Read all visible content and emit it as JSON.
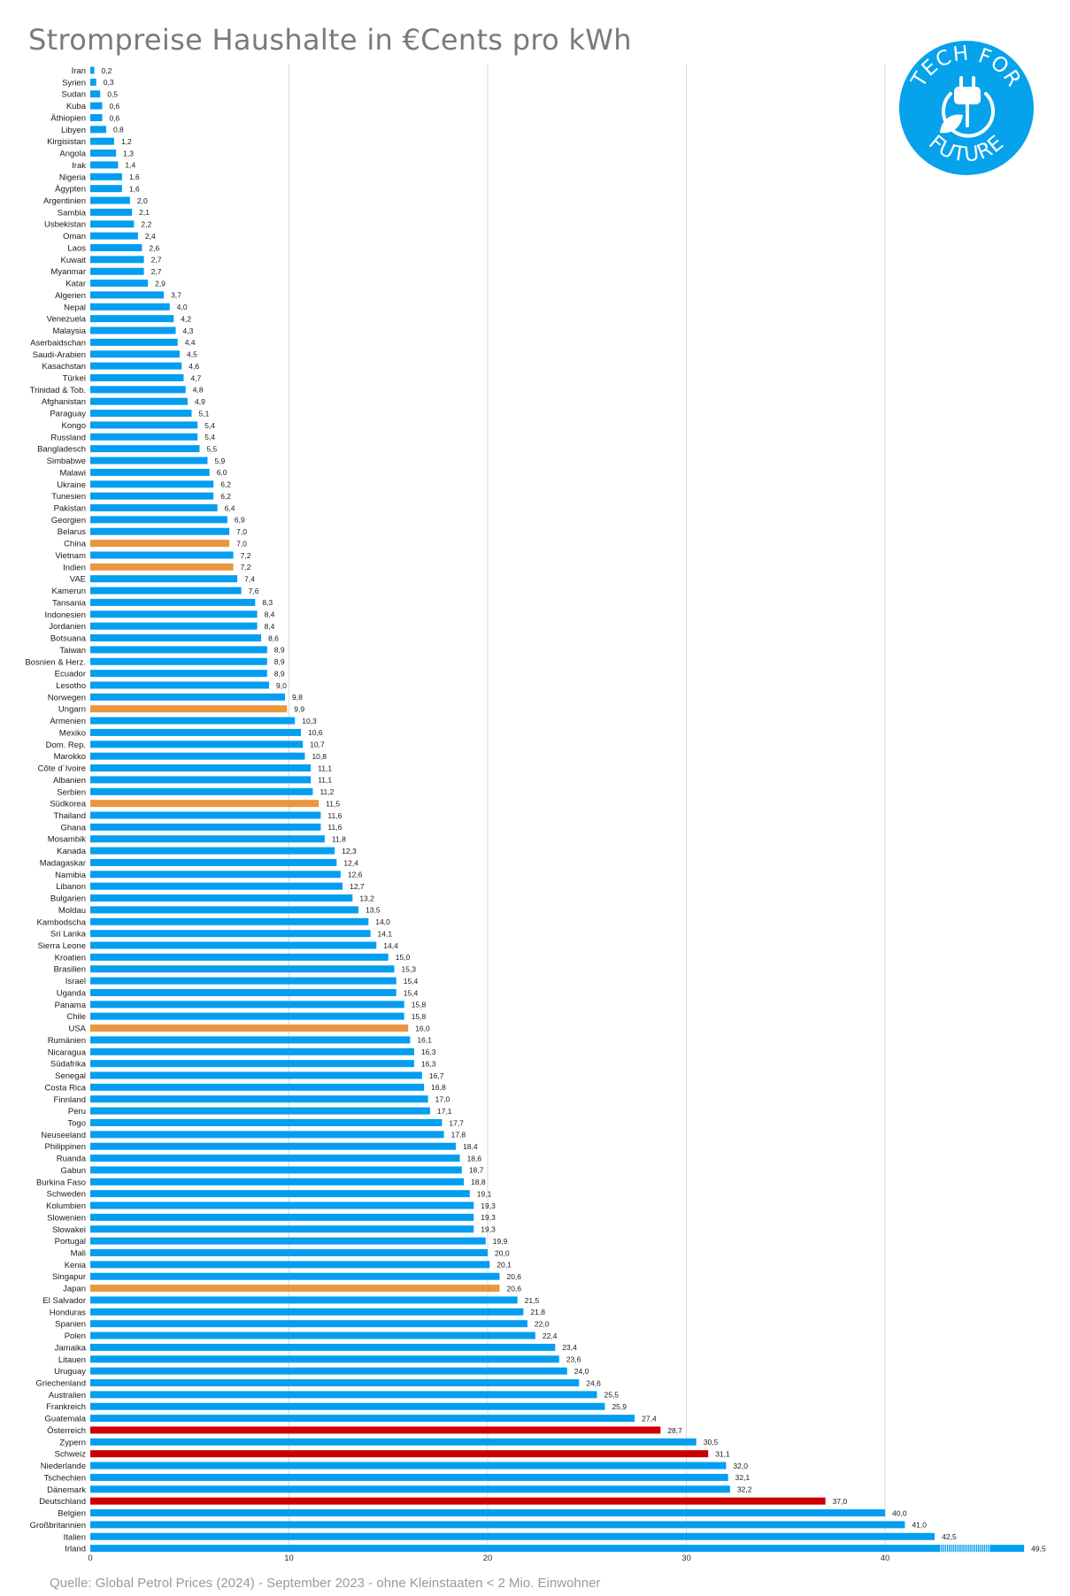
{
  "title": "Strompreise Haushalte in €Cents pro kWh",
  "source": "Quelle: Global Petrol Prices (2024) - September 2023 - ohne Kleinstaaten < 2 Mio. Einwohner",
  "logo": {
    "text_top": "TECH FOR",
    "text_bottom": "FUTURE",
    "icon": "plug-leaf-icon",
    "color": "#07a2ec"
  },
  "colors": {
    "default": "#049ef0",
    "highlight_orange": "#e8963f",
    "highlight_red": "#cc0000",
    "grid": "#d9d9d9"
  },
  "chart_data": {
    "type": "bar",
    "orientation": "horizontal",
    "title": "Strompreise Haushalte in €Cents pro kWh",
    "xlim": [
      0,
      47
    ],
    "xticks": [
      0,
      10,
      20,
      30,
      40
    ],
    "grid": true,
    "categories": [
      "Iran",
      "Syrien",
      "Sudan",
      "Kuba",
      "Äthiopien",
      "Libyen",
      "Kirgisistan",
      "Angola",
      "Irak",
      "Nigeria",
      "Ägypten",
      "Argentinien",
      "Sambia",
      "Usbekistan",
      "Oman",
      "Laos",
      "Kuwait",
      "Myanmar",
      "Katar",
      "Algerien",
      "Nepal",
      "Venezuela",
      "Malaysia",
      "Aserbaidschan",
      "Saudi-Arabien",
      "Kasachstan",
      "Türkei",
      "Trinidad & Tob.",
      "Afghanistan",
      "Paraguay",
      "Kongo",
      "Russland",
      "Bangladesch",
      "Simbabwe",
      "Malawi",
      "Ukraine",
      "Tunesien",
      "Pakistan",
      "Georgien",
      "Belarus",
      "China",
      "Vietnam",
      "Indien",
      "VAE",
      "Kamerun",
      "Tansania",
      "Indonesien",
      "Jordanien",
      "Botsuana",
      "Taiwan",
      "Bosnien & Herz.",
      "Ecuador",
      "Lesotho",
      "Norwegen",
      "Ungarn",
      "Armenien",
      "Mexiko",
      "Dom. Rep.",
      "Marokko",
      "Côte d´Ivoire",
      "Albanien",
      "Serbien",
      "Südkorea",
      "Thailand",
      "Ghana",
      "Mosambik",
      "Kanada",
      "Madagaskar",
      "Namibia",
      "Libanon",
      "Bulgarien",
      "Moldau",
      "Kambodscha",
      "Sri Lanka",
      "Sierra Leone",
      "Kroatien",
      "Brasilien",
      "Israel",
      "Uganda",
      "Panama",
      "Chile",
      "USA",
      "Rumänien",
      "Nicaragua",
      "Südafrika",
      "Senegal",
      "Costa Rica",
      "Finnland",
      "Peru",
      "Togo",
      "Neuseeland",
      "Philippinen",
      "Ruanda",
      "Gabun",
      "Burkina Faso",
      "Schweden",
      "Kolumbien",
      "Slowenien",
      "Slowakei",
      "Portugal",
      "Mali",
      "Kenia",
      "Singapur",
      "Japan",
      "El Salvador",
      "Honduras",
      "Spanien",
      "Polen",
      "Jamaika",
      "Litauen",
      "Uruguay",
      "Griechenland",
      "Australien",
      "Frankreich",
      "Guatemala",
      "Österreich",
      "Zypern",
      "Schweiz",
      "Niederlande",
      "Tschechien",
      "Dänemark",
      "Deutschland",
      "Belgien",
      "Großbritannien",
      "Italien",
      "Irland"
    ],
    "values": [
      0.2,
      0.3,
      0.5,
      0.6,
      0.6,
      0.8,
      1.2,
      1.3,
      1.4,
      1.6,
      1.6,
      2.0,
      2.1,
      2.2,
      2.4,
      2.6,
      2.7,
      2.7,
      2.9,
      3.7,
      4.0,
      4.2,
      4.3,
      4.4,
      4.5,
      4.6,
      4.7,
      4.8,
      4.9,
      5.1,
      5.4,
      5.4,
      5.5,
      5.9,
      6.0,
      6.2,
      6.2,
      6.4,
      6.9,
      7.0,
      7.0,
      7.2,
      7.2,
      7.4,
      7.6,
      8.3,
      8.4,
      8.4,
      8.6,
      8.9,
      8.9,
      8.9,
      9.0,
      9.8,
      9.9,
      10.3,
      10.6,
      10.7,
      10.8,
      11.1,
      11.1,
      11.2,
      11.5,
      11.6,
      11.6,
      11.8,
      12.3,
      12.4,
      12.6,
      12.7,
      13.2,
      13.5,
      14.0,
      14.1,
      14.4,
      15.0,
      15.3,
      15.4,
      15.4,
      15.8,
      15.8,
      16.0,
      16.1,
      16.3,
      16.3,
      16.7,
      16.8,
      17.0,
      17.1,
      17.7,
      17.8,
      18.4,
      18.6,
      18.7,
      18.8,
      19.1,
      19.3,
      19.3,
      19.3,
      19.9,
      20.0,
      20.1,
      20.6,
      20.6,
      21.5,
      21.8,
      22.0,
      22.4,
      23.4,
      23.6,
      24.0,
      24.6,
      25.5,
      25.9,
      27.4,
      28.7,
      30.5,
      31.1,
      32.0,
      32.1,
      32.2,
      37.0,
      40.0,
      41.0,
      42.5,
      49.5
    ],
    "value_labels": [
      "0,2",
      "0,3",
      "0,5",
      "0,6",
      "0,6",
      "0,8",
      "1,2",
      "1,3",
      "1,4",
      "1,6",
      "1,6",
      "2,0",
      "2,1",
      "2,2",
      "2,4",
      "2,6",
      "2,7",
      "2,7",
      "2,9",
      "3,7",
      "4,0",
      "4,2",
      "4,3",
      "4,4",
      "4,5",
      "4,6",
      "4,7",
      "4,8",
      "4,9",
      "5,1",
      "5,4",
      "5,4",
      "5,5",
      "5,9",
      "6,0",
      "6,2",
      "6,2",
      "6,4",
      "6,9",
      "7,0",
      "7,0",
      "7,2",
      "7,2",
      "7,4",
      "7,6",
      "8,3",
      "8,4",
      "8,4",
      "8,6",
      "8,9",
      "8,9",
      "8,9",
      "9,0",
      "9,8",
      "9,9",
      "10,3",
      "10,6",
      "10,7",
      "10,8",
      "11,1",
      "11,1",
      "11,2",
      "11,5",
      "11,6",
      "11,6",
      "11,8",
      "12,3",
      "12,4",
      "12,6",
      "12,7",
      "13,2",
      "13,5",
      "14,0",
      "14,1",
      "14,4",
      "15,0",
      "15,3",
      "15,4",
      "15,4",
      "15,8",
      "15,8",
      "16,0",
      "16,1",
      "16,3",
      "16,3",
      "16,7",
      "16,8",
      "17,0",
      "17,1",
      "17,7",
      "17,8",
      "18,4",
      "18,6",
      "18,7",
      "18,8",
      "19,1",
      "19,3",
      "19,3",
      "19,3",
      "19,9",
      "20,0",
      "20,1",
      "20,6",
      "20,6",
      "21,5",
      "21,8",
      "22,0",
      "22,4",
      "23,4",
      "23,6",
      "24,0",
      "24,6",
      "25,5",
      "25,9",
      "27,4",
      "28,7",
      "30,5",
      "31,1",
      "32,0",
      "32,1",
      "32,2",
      "37,0",
      "40,0",
      "41,0",
      "42,5",
      "49,5"
    ],
    "highlight_orange": [
      "China",
      "Indien",
      "Ungarn",
      "Südkorea",
      "USA",
      "Japan"
    ],
    "highlight_red": [
      "Österreich",
      "Schweiz",
      "Deutschland"
    ],
    "axis_break": {
      "category": "Irland",
      "value": 49.5
    }
  }
}
